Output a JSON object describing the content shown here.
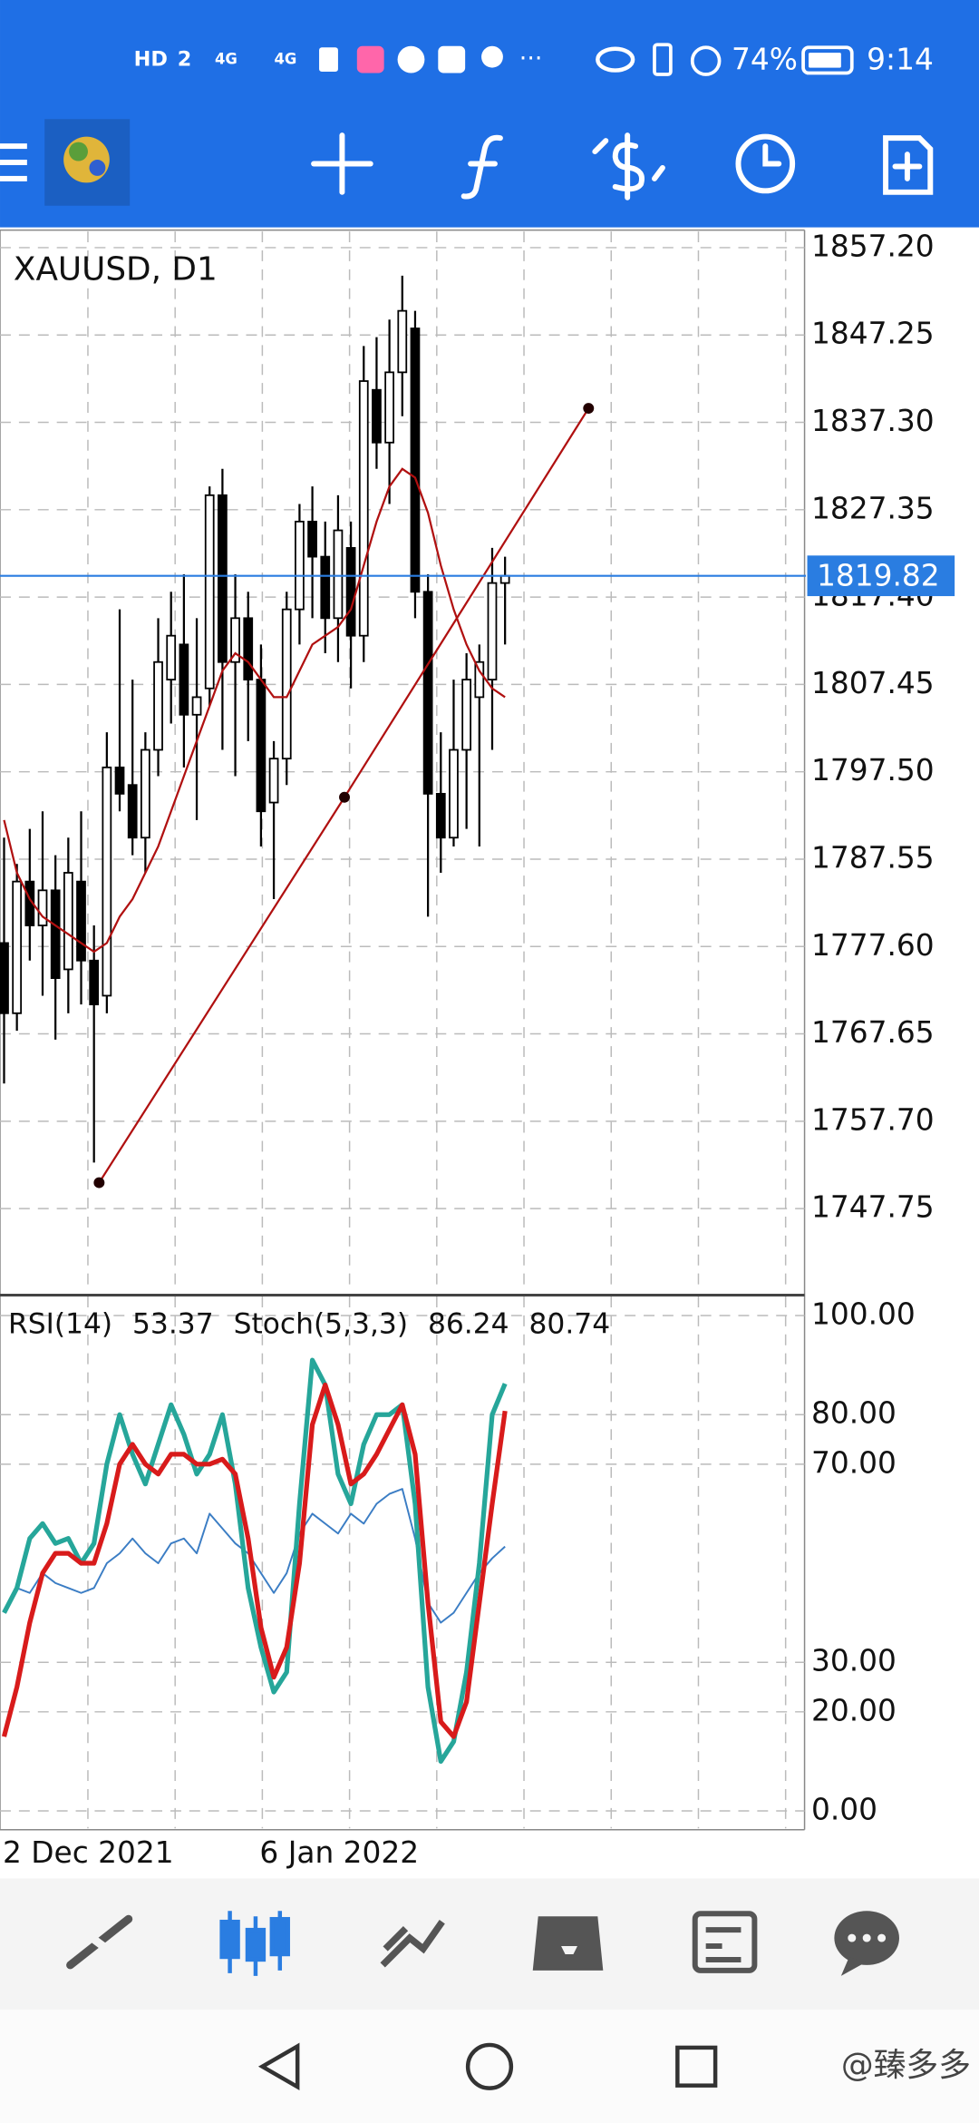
{
  "status_bar": {
    "indicators": [
      "HD",
      "2",
      "4G",
      "4G"
    ],
    "battery": "74%",
    "time": "9:14"
  },
  "chart_data": [
    {
      "type": "candlestick",
      "title": "XAUUSD, D1",
      "categories": [
        "2 Dec 2021",
        null,
        null,
        null,
        null,
        null,
        null,
        null,
        null,
        null,
        null,
        null,
        null,
        null,
        null,
        null,
        null,
        null,
        null,
        null,
        "6 Jan 2022",
        null,
        null,
        null,
        null,
        null,
        null,
        null,
        null,
        null,
        null,
        null,
        null,
        null,
        null,
        null,
        null,
        null,
        null,
        null
      ],
      "open": [
        1778,
        1770,
        1785,
        1780,
        1784,
        1775,
        1785,
        1776,
        1772,
        1798,
        1796,
        1790,
        1800,
        1808,
        1812,
        1804,
        1807,
        1829,
        1810,
        1815,
        1808,
        1794,
        1799,
        1816,
        1826,
        1822,
        1815,
        1823,
        1813,
        1841,
        1835,
        1843,
        1848,
        1818,
        1795,
        1790,
        1800,
        1806,
        1808,
        1819
      ],
      "high": [
        1790,
        1787,
        1791,
        1793,
        1788,
        1790,
        1793,
        1780,
        1802,
        1816,
        1808,
        1802,
        1815,
        1818,
        1820,
        1815,
        1830,
        1832,
        1820,
        1818,
        1812,
        1801,
        1818,
        1828,
        1830,
        1826,
        1829,
        1826,
        1846,
        1847,
        1849,
        1854,
        1850,
        1820,
        1802,
        1808,
        1811,
        1812,
        1823,
        1822
      ],
      "low": [
        1762,
        1768,
        1776,
        1772,
        1767,
        1770,
        1771,
        1753,
        1770,
        1793,
        1788,
        1786,
        1797,
        1803,
        1798,
        1792,
        1805,
        1800,
        1797,
        1801,
        1789,
        1783,
        1796,
        1812,
        1815,
        1811,
        1810,
        1807,
        1810,
        1832,
        1828,
        1838,
        1815,
        1781,
        1786,
        1789,
        1791,
        1789,
        1800,
        1812
      ],
      "close": [
        1770,
        1785,
        1780,
        1784,
        1774,
        1786,
        1776,
        1771,
        1798,
        1795,
        1790,
        1800,
        1810,
        1813,
        1804,
        1806,
        1829,
        1810,
        1815,
        1808,
        1793,
        1799,
        1816,
        1826,
        1822,
        1815,
        1825,
        1813,
        1842,
        1835,
        1843,
        1850,
        1818,
        1795,
        1790,
        1800,
        1808,
        1810,
        1819,
        1819.82
      ],
      "up_color": "#ffffff",
      "down_color": "#000000",
      "ma": {
        "color": "#b01010",
        "values": [
          1792,
          1786,
          1783,
          1781,
          1780,
          1779,
          1778,
          1777,
          1778,
          1781,
          1783,
          1786,
          1789,
          1793,
          1797,
          1801,
          1805,
          1809,
          1811,
          1810,
          1808,
          1806,
          1806,
          1809,
          1812,
          1813,
          1814,
          1816,
          1821,
          1826,
          1830,
          1832,
          1831,
          1827,
          1821,
          1816,
          1812,
          1809,
          1807,
          1806
        ]
      },
      "trendline": {
        "color": "#b01010",
        "x": [
          7.4,
          26.5,
          45.5
        ],
        "y": [
          1750.7,
          1794.6,
          1838.9
        ]
      },
      "current_price": 1819.82,
      "current_price_color": "#2a7de1",
      "ylim": [
        1738.2,
        1859.2
      ],
      "yticks": [
        {
          "value": 1857.2,
          "label": "1857.20"
        },
        1847.25,
        {
          "value": 1837.3,
          "label": "1837.30"
        },
        1827.35,
        {
          "value": 1817.4,
          "label": "1817.40"
        },
        1807.45,
        {
          "value": 1797.5,
          "label": "1797.50"
        },
        1787.55,
        {
          "value": 1777.6,
          "label": "1777.60"
        },
        1767.65,
        {
          "value": 1757.7,
          "label": "1757.70"
        },
        1747.75
      ],
      "grid": true
    },
    {
      "type": "line",
      "series": [
        {
          "name": "RSI(14)",
          "color": "#3b7dc4",
          "values": [
            40,
            45,
            44,
            48,
            46,
            45,
            44,
            45,
            50,
            52,
            55,
            52,
            50,
            54,
            55,
            52,
            60,
            57,
            54,
            52,
            48,
            44,
            48,
            56,
            60,
            58,
            56,
            60,
            58,
            62,
            64,
            65,
            55,
            42,
            38,
            40,
            44,
            48,
            51,
            53.37
          ]
        },
        {
          "name": "Stoch(5,3,3)",
          "color": "#26a69a",
          "values": [
            40,
            45,
            55,
            58,
            54,
            55,
            50,
            54,
            70,
            80,
            72,
            66,
            74,
            82,
            76,
            68,
            72,
            80,
            66,
            45,
            33,
            24,
            28,
            62,
            91,
            86,
            68,
            62,
            74,
            80,
            80,
            82,
            62,
            25,
            10,
            14,
            28,
            50,
            80,
            86.24
          ]
        },
        {
          "color": "#d81b1b",
          "values": [
            15,
            25,
            38,
            48,
            52,
            52,
            50,
            50,
            58,
            70,
            74,
            70,
            68,
            72,
            72,
            70,
            70,
            71,
            68,
            55,
            37,
            27,
            33,
            50,
            78,
            86,
            78,
            66,
            68,
            72,
            77,
            82,
            72,
            42,
            18,
            15,
            22,
            42,
            62,
            80.74
          ]
        }
      ],
      "ylim": [
        -3.8,
        103.3
      ],
      "yticks": [
        {
          "value": 100,
          "label": "100.00"
        },
        {
          "value": 80,
          "label": "80.00"
        },
        {
          "value": 70,
          "label": "70.00"
        },
        {
          "value": 30,
          "label": "30.00"
        },
        {
          "value": 20,
          "label": "20.00"
        },
        {
          "value": 0,
          "label": "0.00"
        }
      ],
      "grid": true
    }
  ],
  "watermark": "@臻多多"
}
